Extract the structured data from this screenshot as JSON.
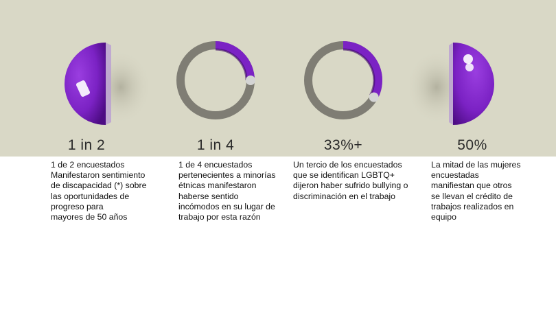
{
  "colors": {
    "band": "#d9d8c6",
    "purple": "#7b22c4",
    "purple_dark": "#4d0c84",
    "track": "#7f7d74",
    "knob": "#d4d4d4"
  },
  "chart_data": {
    "type": "pie",
    "items": [
      {
        "big_label": "1 in 2",
        "value": 0.5,
        "graphic": "half-sphere-left",
        "description": "1 de 2 encuestados\nManifestaron sentimiento\nde discapacidad (*) sobre\nlas oportunidades de\nprogreso para\nmayores de 50 años"
      },
      {
        "big_label": "1 in 4",
        "value": 0.25,
        "graphic": "donut",
        "description": "1 de 4 encuestados\npertenecientes a minorías\nétnicas manifestaron\nhaberse sentido\nincómodos en su lugar de\ntrabajo por esta razón"
      },
      {
        "big_label": "33%+",
        "value": 0.33,
        "graphic": "donut",
        "description": "Un tercio de los encuestados\nque se identifican LGBTQ+\ndijeron haber sufrido bullying o\ndiscriminación en el trabajo"
      },
      {
        "big_label": "50%",
        "value": 0.5,
        "graphic": "half-sphere-right",
        "description": "La mitad de las mujeres\nencuestadas\nmanifiestan que otros\nse llevan el crédito de\ntrabajos realizados en\nequipo"
      }
    ]
  }
}
